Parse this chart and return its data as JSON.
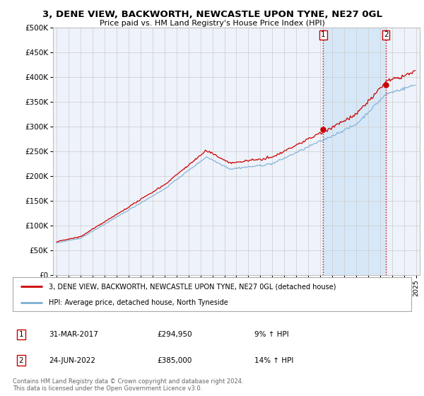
{
  "title": "3, DENE VIEW, BACKWORTH, NEWCASTLE UPON TYNE, NE27 0GL",
  "subtitle": "Price paid vs. HM Land Registry's House Price Index (HPI)",
  "legend_label_red": "3, DENE VIEW, BACKWORTH, NEWCASTLE UPON TYNE, NE27 0GL (detached house)",
  "legend_label_blue": "HPI: Average price, detached house, North Tyneside",
  "annotation1_date": "31-MAR-2017",
  "annotation1_price": "£294,950",
  "annotation1_pct": "9% ↑ HPI",
  "annotation2_date": "24-JUN-2022",
  "annotation2_price": "£385,000",
  "annotation2_pct": "14% ↑ HPI",
  "footnote": "Contains HM Land Registry data © Crown copyright and database right 2024.\nThis data is licensed under the Open Government Licence v3.0.",
  "ylim": [
    0,
    500000
  ],
  "yticks": [
    0,
    50000,
    100000,
    150000,
    200000,
    250000,
    300000,
    350000,
    400000,
    450000,
    500000
  ],
  "red_color": "#cc0000",
  "blue_color": "#7bafd4",
  "shade_color": "#d6e8f7",
  "vline_color": "#cc0000",
  "background_color": "#ffffff",
  "plot_bg_color": "#eef2fa",
  "grid_color": "#cccccc",
  "purchase1_year": 2017.25,
  "purchase1_value": 294950,
  "purchase2_year": 2022.48,
  "purchase2_value": 385000,
  "start_year": 1995,
  "end_year": 2025
}
